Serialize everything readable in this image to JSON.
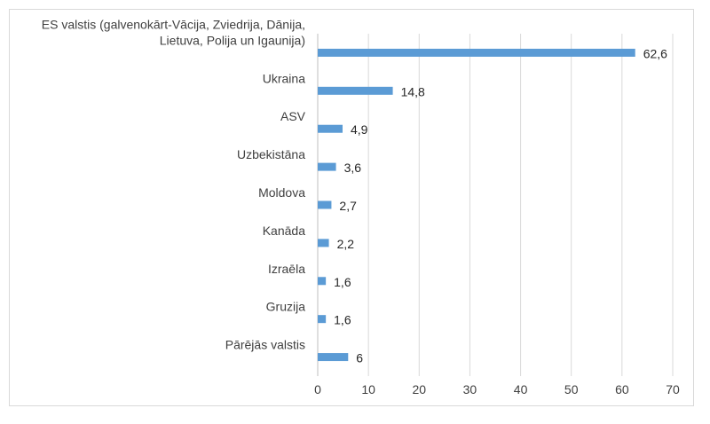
{
  "chart_data": {
    "type": "bar",
    "orientation": "horizontal",
    "title": "",
    "xlabel": "",
    "ylabel": "",
    "xlim": [
      0,
      70
    ],
    "x_ticks": [
      "0",
      "10",
      "20",
      "30",
      "40",
      "50",
      "60",
      "70"
    ],
    "grid": true,
    "legend": "none",
    "bar_color": "#5b9bd5",
    "categories": [
      [
        "ES valstis (galvenokārt-Vācija, Zviedrija, Dānija,",
        "Lietuva, Polija un Igaunija)"
      ],
      [
        "Ukraina"
      ],
      [
        "ASV"
      ],
      [
        "Uzbekistāna"
      ],
      [
        "Moldova"
      ],
      [
        "Kanāda"
      ],
      [
        "Izraēla"
      ],
      [
        "Gruzija"
      ],
      [
        "Pārējās valstis"
      ]
    ],
    "values": [
      62.6,
      14.8,
      4.9,
      3.6,
      2.7,
      2.2,
      1.6,
      1.6,
      6
    ],
    "value_labels": [
      "62,6",
      "14,8",
      "4,9",
      "3,6",
      "2,7",
      "2,2",
      "1,6",
      "1,6",
      "6"
    ]
  }
}
